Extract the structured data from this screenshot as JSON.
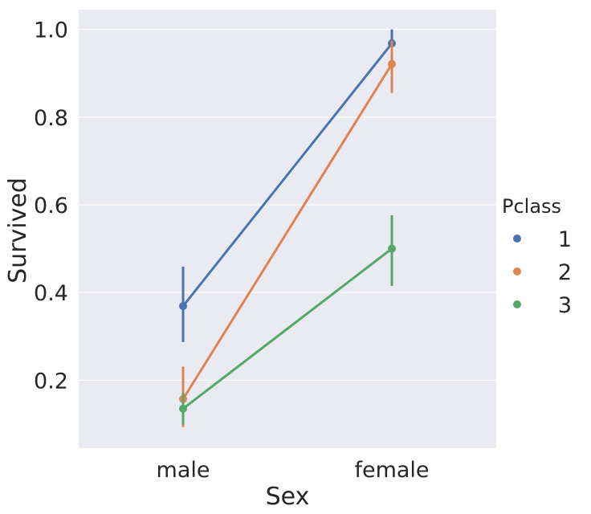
{
  "chart_data": {
    "type": "line",
    "kind": "point plot with error bars",
    "categories": [
      "male",
      "female"
    ],
    "xlabel": "Sex",
    "ylabel": "Survived",
    "ylim": [
      0.045,
      1.045
    ],
    "yticks": [
      0.2,
      0.4,
      0.6,
      0.8,
      1.0
    ],
    "ytick_labels": [
      "0.2",
      "0.4",
      "0.6",
      "0.8",
      "1.0"
    ],
    "grid": true,
    "legend": {
      "title": "Pclass",
      "placement": "right"
    },
    "series": [
      {
        "name": "1",
        "color": "#4c72b0",
        "values": [
          0.369,
          0.968
        ],
        "ci_low": [
          0.287,
          0.926
        ],
        "ci_high": [
          0.459,
          1.0
        ]
      },
      {
        "name": "2",
        "color": "#dd8452",
        "values": [
          0.157,
          0.921
        ],
        "ci_low": [
          0.093,
          0.855
        ],
        "ci_high": [
          0.231,
          0.974
        ]
      },
      {
        "name": "3",
        "color": "#55a868",
        "values": [
          0.135,
          0.5
        ],
        "ci_low": [
          0.099,
          0.415
        ],
        "ci_high": [
          0.172,
          0.576
        ]
      }
    ]
  }
}
